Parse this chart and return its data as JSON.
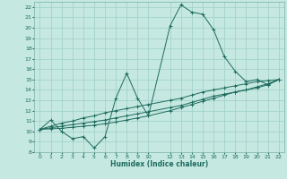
{
  "xlabel": "Humidex (Indice chaleur)",
  "background_color": "#c5e8e0",
  "grid_color": "#9ecfca",
  "line_color": "#1e6b5e",
  "xlim": [
    -0.5,
    22.5
  ],
  "ylim": [
    8,
    22.5
  ],
  "xticks": [
    0,
    1,
    2,
    3,
    4,
    5,
    6,
    7,
    8,
    9,
    10,
    12,
    13,
    14,
    15,
    16,
    17,
    18,
    19,
    20,
    21,
    22
  ],
  "yticks": [
    8,
    9,
    10,
    11,
    12,
    13,
    14,
    15,
    16,
    17,
    18,
    19,
    20,
    21,
    22
  ],
  "lines": [
    {
      "x": [
        0,
        1,
        2,
        3,
        4,
        5,
        6,
        7,
        8,
        9,
        10,
        12,
        13,
        14,
        15,
        16,
        17,
        18,
        19,
        20,
        21,
        22
      ],
      "y": [
        10.2,
        11.1,
        10.0,
        9.3,
        9.5,
        8.4,
        9.5,
        13.2,
        15.6,
        13.2,
        11.5,
        20.2,
        22.2,
        21.5,
        21.3,
        19.8,
        17.2,
        15.8,
        14.8,
        15.0,
        14.5,
        15.0
      ]
    },
    {
      "x": [
        0,
        1,
        2,
        3,
        4,
        5,
        6,
        7,
        8,
        9,
        10,
        12,
        13,
        14,
        15,
        16,
        17,
        18,
        19,
        20,
        21,
        22
      ],
      "y": [
        10.2,
        10.5,
        10.8,
        11.0,
        11.3,
        11.5,
        11.8,
        12.0,
        12.2,
        12.4,
        12.6,
        13.0,
        13.2,
        13.5,
        13.8,
        14.0,
        14.2,
        14.4,
        14.6,
        14.8,
        14.9,
        15.0
      ]
    },
    {
      "x": [
        0,
        1,
        2,
        3,
        4,
        5,
        6,
        7,
        8,
        9,
        10,
        12,
        13,
        14,
        15,
        16,
        17,
        18,
        19,
        20,
        21,
        22
      ],
      "y": [
        10.2,
        10.35,
        10.5,
        10.65,
        10.8,
        10.95,
        11.1,
        11.3,
        11.5,
        11.7,
        11.9,
        12.3,
        12.5,
        12.8,
        13.1,
        13.4,
        13.6,
        13.8,
        14.0,
        14.3,
        14.6,
        15.0
      ]
    },
    {
      "x": [
        0,
        1,
        2,
        3,
        4,
        5,
        6,
        7,
        8,
        9,
        10,
        12,
        13,
        14,
        15,
        16,
        17,
        18,
        19,
        20,
        21,
        22
      ],
      "y": [
        10.2,
        10.25,
        10.3,
        10.4,
        10.5,
        10.6,
        10.75,
        10.9,
        11.1,
        11.3,
        11.5,
        12.0,
        12.3,
        12.6,
        12.9,
        13.2,
        13.5,
        13.8,
        14.0,
        14.2,
        14.5,
        15.0
      ]
    }
  ]
}
